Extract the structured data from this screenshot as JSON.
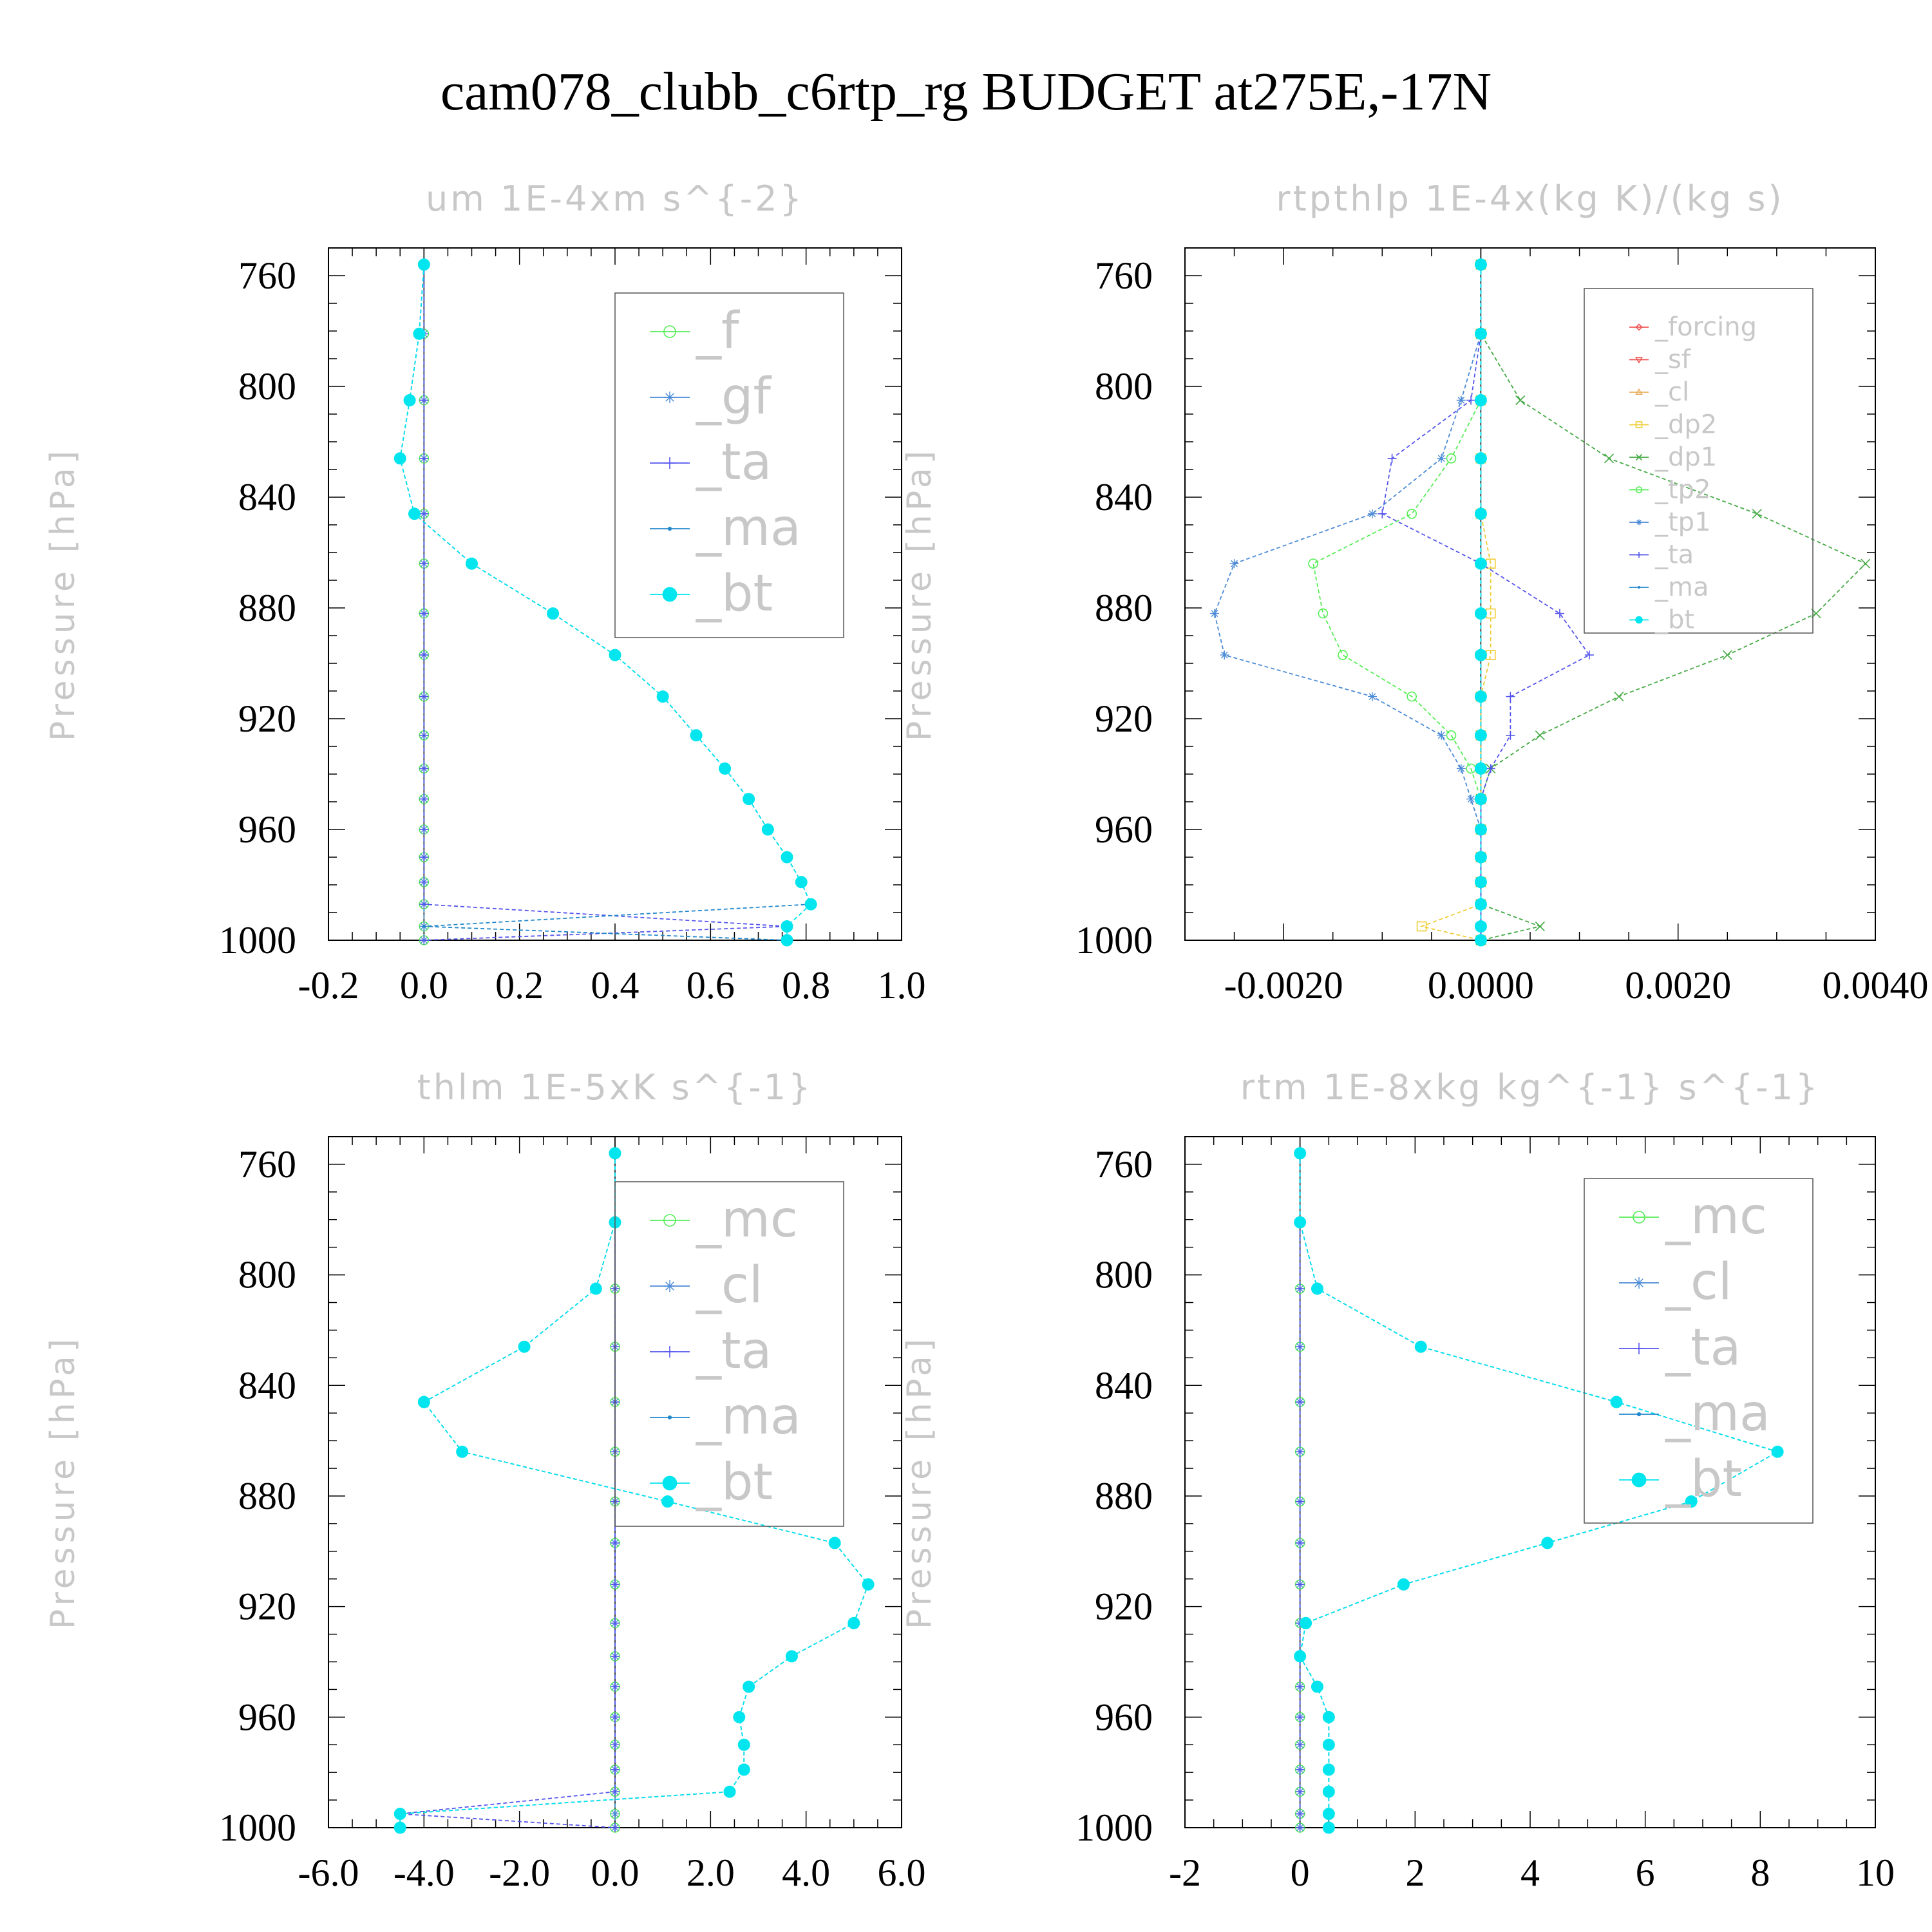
{
  "figure_title": "cam078_clubb_c6rtp_rg  BUDGET at275E,-17N",
  "chart_data": [
    {
      "type": "line",
      "title": "um  1E-4xm s^{-2}",
      "ylabel": "Pressure [hPa]",
      "xlim": [
        -0.2,
        1.0
      ],
      "ylim": [
        1000,
        750
      ],
      "xticks": [
        "-0.2",
        "0.0",
        "0.2",
        "0.4",
        "0.6",
        "0.8",
        "1.0"
      ],
      "yticks": [
        "760",
        "800",
        "840",
        "880",
        "920",
        "960",
        "1000"
      ],
      "levels": [
        756,
        781,
        805,
        826,
        846,
        864,
        882,
        897,
        912,
        926,
        938,
        949,
        960,
        970,
        979,
        987,
        995,
        1000
      ],
      "legend": [
        "_f",
        "_gf",
        "_ta",
        "_ma",
        "_bt"
      ],
      "series": [
        {
          "name": "_f",
          "color": "#55ee55",
          "marker": "circle",
          "values": [
            0,
            0,
            0,
            0,
            0,
            0,
            0,
            0,
            0,
            0,
            0,
            0,
            0,
            0,
            0,
            0,
            0,
            0
          ]
        },
        {
          "name": "_gf",
          "color": "#4a8ad6",
          "marker": "star",
          "values": [
            0,
            0,
            0,
            0,
            0,
            0,
            0,
            0,
            0,
            0,
            0,
            0,
            0,
            0,
            0,
            0,
            0,
            0
          ]
        },
        {
          "name": "_ta",
          "color": "#5555ee",
          "marker": "plus",
          "values": [
            0,
            0,
            0,
            0,
            0,
            0,
            0,
            0,
            0,
            0,
            0,
            0,
            0,
            0,
            0,
            0,
            0.76,
            0
          ]
        },
        {
          "name": "_ma",
          "color": "#2288cc",
          "marker": "dot",
          "values": [
            0,
            -0.01,
            -0.03,
            -0.05,
            -0.02,
            0.1,
            0.27,
            0.4,
            0.5,
            0.57,
            0.63,
            0.68,
            0.72,
            0.76,
            0.79,
            0.81,
            0,
            0.76
          ]
        },
        {
          "name": "_bt",
          "color": "#00e5ee",
          "marker": "filled",
          "values": [
            0,
            -0.01,
            -0.03,
            -0.05,
            -0.02,
            0.1,
            0.27,
            0.4,
            0.5,
            0.57,
            0.63,
            0.68,
            0.72,
            0.76,
            0.79,
            0.81,
            0.76,
            0.76
          ]
        }
      ]
    },
    {
      "type": "line",
      "title": "rtpthlp  1E-4x(kg K)/(kg s)",
      "ylabel": "Pressure [hPa]",
      "xlim": [
        -0.003,
        0.004
      ],
      "ylim": [
        1000,
        750
      ],
      "xticks": [
        "-0.0020",
        "0.0000",
        "0.0020",
        "0.0040"
      ],
      "yticks": [
        "760",
        "800",
        "840",
        "880",
        "920",
        "960",
        "1000"
      ],
      "levels": [
        756,
        781,
        805,
        826,
        846,
        864,
        882,
        897,
        912,
        926,
        938,
        949,
        960,
        970,
        979,
        987,
        995,
        1000
      ],
      "legend": [
        "_forcing",
        "_sf",
        "_cl",
        "_dp2",
        "_dp1",
        "_tp2",
        "_tp1",
        "_ta",
        "_ma",
        "_bt"
      ],
      "series": [
        {
          "name": "_forcing",
          "color": "#ee5555",
          "marker": "diamond",
          "values": [
            0,
            0,
            0,
            0,
            0,
            0,
            0,
            0,
            0,
            0,
            0,
            0,
            0,
            0,
            0,
            0,
            0,
            0
          ]
        },
        {
          "name": "_sf",
          "color": "#ee5555",
          "marker": "tri-down",
          "values": [
            0,
            0,
            0,
            0,
            0,
            0,
            0,
            0,
            0,
            0,
            0,
            0,
            0,
            0,
            0,
            0,
            0,
            0
          ]
        },
        {
          "name": "_cl",
          "color": "#e8b060",
          "marker": "tri-up",
          "values": [
            0,
            0,
            0,
            0,
            0,
            0,
            0,
            0,
            0,
            0,
            0,
            0,
            0,
            0,
            0,
            0,
            0,
            0
          ]
        },
        {
          "name": "_dp2",
          "color": "#eecc33",
          "marker": "square",
          "values": [
            0,
            0,
            0,
            0,
            0,
            0.0001,
            0.0001,
            0.0001,
            0,
            0,
            0,
            0,
            0,
            0,
            0,
            0,
            -0.0006,
            0
          ]
        },
        {
          "name": "_dp1",
          "color": "#44aa44",
          "marker": "x",
          "values": [
            0,
            0,
            0.0004,
            0.0013,
            0.0028,
            0.0039,
            0.0034,
            0.0025,
            0.0014,
            0.0006,
            0.0001,
            0,
            0,
            0,
            0,
            0,
            0.0006,
            0
          ]
        },
        {
          "name": "_tp2",
          "color": "#55ee55",
          "marker": "circle",
          "values": [
            0,
            0,
            0,
            -0.0003,
            -0.0007,
            -0.0017,
            -0.0016,
            -0.0014,
            -0.0007,
            -0.0003,
            -0.0001,
            0,
            0,
            0,
            0,
            0,
            0,
            0
          ]
        },
        {
          "name": "_tp1",
          "color": "#4a8ad6",
          "marker": "star",
          "values": [
            0,
            0,
            -0.0002,
            -0.0004,
            -0.0011,
            -0.0025,
            -0.0027,
            -0.0026,
            -0.0011,
            -0.0004,
            -0.0002,
            -0.0001,
            0,
            0,
            0,
            0,
            0,
            0
          ]
        },
        {
          "name": "_ta",
          "color": "#5555ee",
          "marker": "plus",
          "values": [
            0,
            0,
            -0.0001,
            -0.0009,
            -0.001,
            0,
            0.0008,
            0.0011,
            0.0003,
            0.0003,
            0.0001,
            0,
            0,
            0,
            0,
            0,
            0,
            0
          ]
        },
        {
          "name": "_ma",
          "color": "#2288cc",
          "marker": "dot",
          "values": [
            0,
            0,
            0,
            0,
            0,
            0,
            0,
            0,
            0,
            0,
            0,
            0,
            0,
            0,
            0,
            0,
            0,
            0
          ]
        },
        {
          "name": "_bt",
          "color": "#00e5ee",
          "marker": "filled",
          "values": [
            0,
            0,
            0,
            0,
            0,
            0,
            0,
            0,
            0,
            0,
            0,
            0,
            0,
            0,
            0,
            0,
            0,
            0
          ]
        }
      ]
    },
    {
      "type": "line",
      "title": "thlm  1E-5xK s^{-1}",
      "ylabel": "Pressure [hPa]",
      "xlim": [
        -6.0,
        6.0
      ],
      "ylim": [
        1000,
        750
      ],
      "xticks": [
        "-6.0",
        "-4.0",
        "-2.0",
        "0.0",
        "2.0",
        "4.0",
        "6.0"
      ],
      "yticks": [
        "760",
        "800",
        "840",
        "880",
        "920",
        "960",
        "1000"
      ],
      "levels": [
        756,
        781,
        805,
        826,
        846,
        864,
        882,
        897,
        912,
        926,
        938,
        949,
        960,
        970,
        979,
        987,
        995,
        1000
      ],
      "legend": [
        "_mc",
        "_cl",
        "_ta",
        "_ma",
        "_bt"
      ],
      "series": [
        {
          "name": "_mc",
          "color": "#55ee55",
          "marker": "circle",
          "values": [
            0,
            0,
            0,
            0,
            0,
            0,
            0,
            0,
            0,
            0,
            0,
            0,
            0,
            0,
            0,
            0,
            0,
            0
          ]
        },
        {
          "name": "_cl",
          "color": "#4a8ad6",
          "marker": "star",
          "values": [
            0,
            0,
            0,
            0,
            0,
            0,
            0,
            0,
            0,
            0,
            0,
            0,
            0,
            0,
            0,
            0,
            0,
            0
          ]
        },
        {
          "name": "_ta",
          "color": "#5555ee",
          "marker": "plus",
          "values": [
            0,
            0,
            0,
            0,
            0,
            0,
            0,
            0,
            0,
            0,
            0,
            0,
            0,
            0,
            0,
            0,
            -4.5,
            0
          ]
        },
        {
          "name": "_ma",
          "color": "#2288cc",
          "marker": "dot",
          "values": [
            0,
            0,
            -0.4,
            -1.9,
            -4.0,
            -3.2,
            1.1,
            4.6,
            5.3,
            5.0,
            3.7,
            2.8,
            2.6,
            2.7,
            2.7,
            2.4,
            -4.5,
            -4.5
          ]
        },
        {
          "name": "_bt",
          "color": "#00e5ee",
          "marker": "filled",
          "values": [
            0,
            0,
            -0.4,
            -1.9,
            -4.0,
            -3.2,
            1.1,
            4.6,
            5.3,
            5.0,
            3.7,
            2.8,
            2.6,
            2.7,
            2.7,
            2.4,
            -4.5,
            -4.5
          ]
        }
      ]
    },
    {
      "type": "line",
      "title": "rtm  1E-8xkg kg^{-1} s^{-1}",
      "ylabel": "Pressure [hPa]",
      "xlim": [
        -2,
        10
      ],
      "ylim": [
        1000,
        750
      ],
      "xticks": [
        "-2",
        "0",
        "2",
        "4",
        "6",
        "8",
        "10"
      ],
      "yticks": [
        "760",
        "800",
        "840",
        "880",
        "920",
        "960",
        "1000"
      ],
      "levels": [
        756,
        781,
        805,
        826,
        846,
        864,
        882,
        897,
        912,
        926,
        938,
        949,
        960,
        970,
        979,
        987,
        995,
        1000
      ],
      "legend": [
        "_mc",
        "_cl",
        "_ta",
        "_ma",
        "_bt"
      ],
      "series": [
        {
          "name": "_mc",
          "color": "#55ee55",
          "marker": "circle",
          "values": [
            0,
            0,
            0,
            0,
            0,
            0,
            0,
            0,
            0,
            0,
            0,
            0,
            0,
            0,
            0,
            0,
            0,
            0
          ]
        },
        {
          "name": "_cl",
          "color": "#4a8ad6",
          "marker": "star",
          "values": [
            0,
            0,
            0,
            0,
            0,
            0,
            0,
            0,
            0,
            0,
            0,
            0,
            0,
            0,
            0,
            0,
            0,
            0
          ]
        },
        {
          "name": "_ta",
          "color": "#5555ee",
          "marker": "plus",
          "values": [
            0,
            0,
            0,
            0,
            0,
            0,
            0,
            0,
            0,
            0,
            0,
            0,
            0,
            0,
            0,
            0,
            0,
            0
          ]
        },
        {
          "name": "_ma",
          "color": "#2288cc",
          "marker": "dot",
          "values": [
            0,
            0,
            0.3,
            2.1,
            5.5,
            8.3,
            6.8,
            4.3,
            1.8,
            0.1,
            0,
            0.3,
            0.5,
            0.5,
            0.5,
            0.5,
            0.5,
            0.5
          ]
        },
        {
          "name": "_bt",
          "color": "#00e5ee",
          "marker": "filled",
          "values": [
            0,
            0,
            0.3,
            2.1,
            5.5,
            8.3,
            6.8,
            4.3,
            1.8,
            0.1,
            0,
            0.3,
            0.5,
            0.5,
            0.5,
            0.5,
            0.5,
            0.5
          ]
        }
      ]
    }
  ]
}
